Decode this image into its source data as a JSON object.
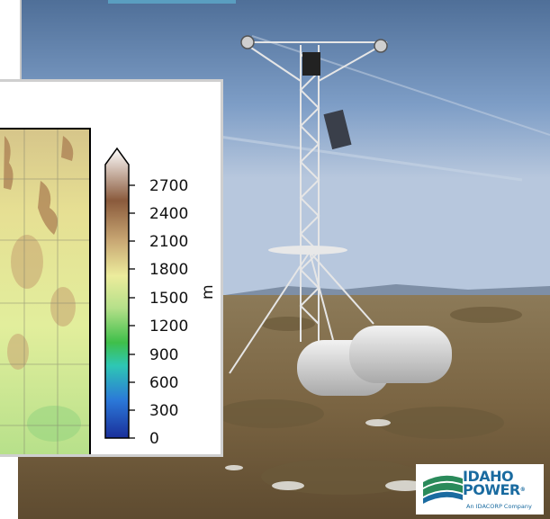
{
  "colorbar": {
    "unit": "m",
    "ticks": [
      "2700",
      "2400",
      "2100",
      "1800",
      "1500",
      "1200",
      "900",
      "600",
      "300",
      "0"
    ],
    "colormap": [
      "#ffffff",
      "#8a5a3c",
      "#c9a874",
      "#ecec9c",
      "#b6e08a",
      "#3fbf4a",
      "#2b78d8",
      "#1a2f9a"
    ]
  },
  "logo": {
    "line1": "IDAHO",
    "line2": "POWER",
    "tagline": "An IDACORP Company",
    "colors": {
      "brand_blue": "#1a6ba0",
      "brand_green": "#2a8a5a"
    }
  },
  "photo": {
    "subject": "weather-station-tower-icon",
    "colors": {
      "sky": "#8aa8cc",
      "ground": "#8a7450"
    }
  }
}
